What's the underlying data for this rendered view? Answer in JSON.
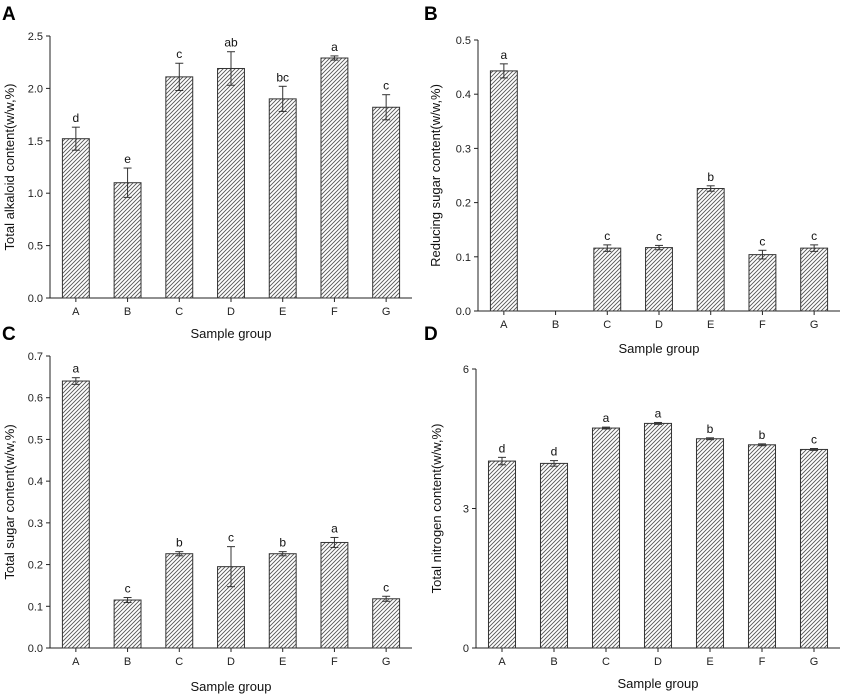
{
  "chart_data": [
    {
      "panel": "A",
      "type": "bar",
      "categories": [
        "A",
        "B",
        "C",
        "D",
        "E",
        "F",
        "G"
      ],
      "values": [
        1.52,
        1.1,
        2.11,
        2.19,
        1.9,
        2.29,
        1.82
      ],
      "errors": [
        0.11,
        0.14,
        0.13,
        0.16,
        0.12,
        0.02,
        0.12
      ],
      "significance": [
        "d",
        "e",
        "c",
        "ab",
        "bc",
        "a",
        "c"
      ],
      "xlabel": "Sample group",
      "ylabel": "Total alkaloid content(w/w,%)",
      "ylim": [
        0,
        2.5
      ],
      "yticks": [
        0.0,
        0.5,
        1.0,
        1.5,
        2.0,
        2.5
      ],
      "ytick_labels": [
        "0.0",
        "0.5",
        "1.0",
        "1.5",
        "2.0",
        "2.5"
      ]
    },
    {
      "panel": "B",
      "type": "bar",
      "categories": [
        "A",
        "B",
        "C",
        "D",
        "E",
        "F",
        "G"
      ],
      "values": [
        0.443,
        0,
        0.116,
        0.117,
        0.226,
        0.104,
        0.116
      ],
      "errors": [
        0.013,
        0,
        0.006,
        0.004,
        0.005,
        0.008,
        0.006
      ],
      "significance": [
        "a",
        "",
        "c",
        "c",
        "b",
        "c",
        "c"
      ],
      "xlabel": "Sample group",
      "ylabel": "Reducing sugar content(w/w,%)",
      "ylim": [
        0,
        0.5
      ],
      "yticks": [
        0.0,
        0.1,
        0.2,
        0.3,
        0.4,
        0.5
      ],
      "ytick_labels": [
        "0.0",
        "0.1",
        "0.2",
        "0.3",
        "0.4",
        "0.5"
      ]
    },
    {
      "panel": "C",
      "type": "bar",
      "categories": [
        "A",
        "B",
        "C",
        "D",
        "E",
        "F",
        "G"
      ],
      "values": [
        0.64,
        0.115,
        0.226,
        0.195,
        0.226,
        0.253,
        0.118
      ],
      "errors": [
        0.008,
        0.006,
        0.005,
        0.048,
        0.005,
        0.012,
        0.006
      ],
      "significance": [
        "a",
        "c",
        "b",
        "c",
        "b",
        "a",
        "c"
      ],
      "xlabel": "Sample group",
      "ylabel": "Total sugar content(w/w,%)",
      "ylim": [
        0,
        0.7
      ],
      "yticks": [
        0.0,
        0.1,
        0.2,
        0.3,
        0.4,
        0.5,
        0.6,
        0.7
      ],
      "ytick_labels": [
        "0.0",
        "0.1",
        "0.2",
        "0.3",
        "0.4",
        "0.5",
        "0.6",
        "0.7"
      ]
    },
    {
      "panel": "D",
      "type": "bar",
      "categories": [
        "A",
        "B",
        "C",
        "D",
        "E",
        "F",
        "G"
      ],
      "values": [
        4.02,
        3.97,
        4.73,
        4.83,
        4.5,
        4.37,
        4.27
      ],
      "errors": [
        0.08,
        0.06,
        0.02,
        0.02,
        0.02,
        0.02,
        0.02
      ],
      "significance": [
        "d",
        "d",
        "a",
        "a",
        "b",
        "b",
        "c"
      ],
      "xlabel": "Sample group",
      "ylabel": "Total nitrogen content(w/w,%)",
      "ylim": [
        0,
        6
      ],
      "yticks": [
        0,
        3,
        6
      ],
      "ytick_labels": [
        "0",
        "3",
        "6"
      ]
    }
  ]
}
